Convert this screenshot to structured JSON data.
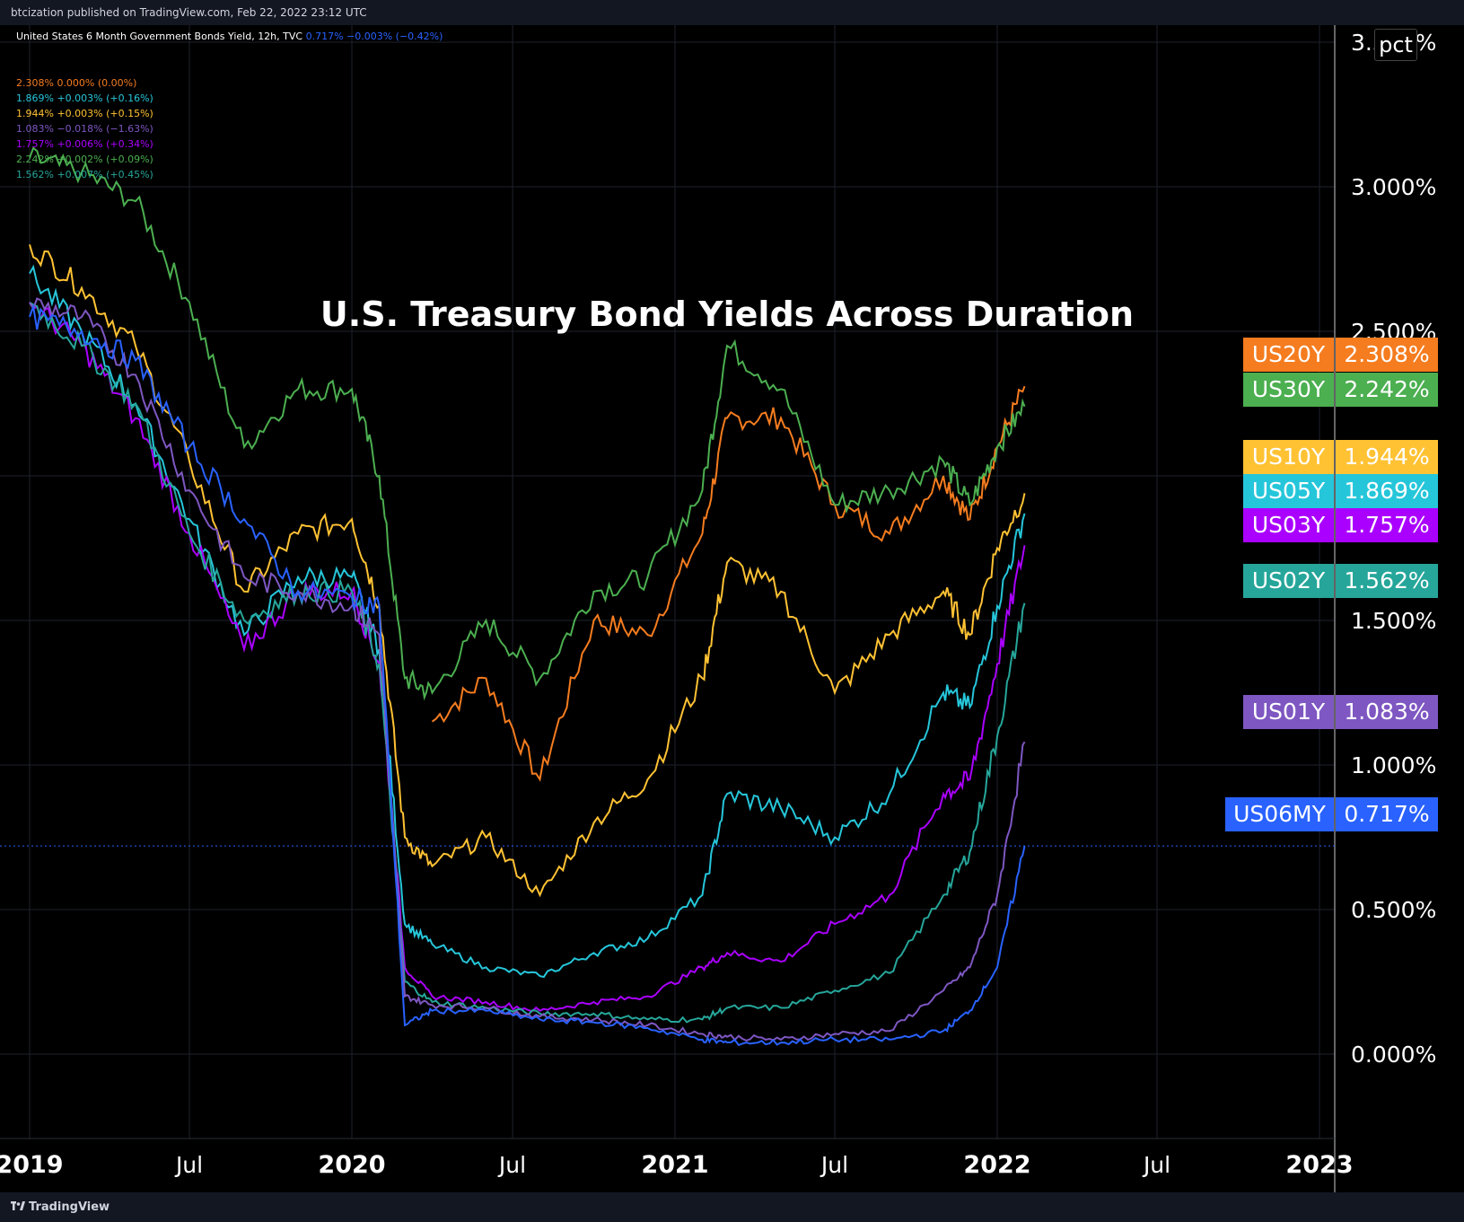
{
  "header": {
    "published": "btcization published on TradingView.com, Feb 22, 2022 23:12 UTC"
  },
  "symbol_line": {
    "name": "United States 6 Month Government Bonds Yield, 12h, TVC",
    "values": "0.717%  −0.003% (−0.42%)"
  },
  "legend": [
    {
      "text": "2.308%  0.000% (0.00%)",
      "color": "#f57c1f"
    },
    {
      "text": "1.869%  +0.003% (+0.16%)",
      "color": "#26c6da"
    },
    {
      "text": "1.944%  +0.003% (+0.15%)",
      "color": "#ffc233"
    },
    {
      "text": "1.083%  −0.018% (−1.63%)",
      "color": "#7e57c2"
    },
    {
      "text": "1.757%  +0.006% (+0.34%)",
      "color": "#aa00ff"
    },
    {
      "text": "2.242%  +0.002% (+0.09%)",
      "color": "#4caf50"
    },
    {
      "text": "1.562%  +0.007% (+0.45%)",
      "color": "#26a69a"
    }
  ],
  "footer": {
    "brand": "TradingView",
    "brand_icon": "tradingview-logo-icon"
  },
  "scale_mode_button": "pct",
  "chart_data": {
    "type": "line",
    "title": "U.S. Treasury Bond Yields Across Duration",
    "xlabel": "",
    "ylabel": "",
    "x_tick_labels": [
      "2019",
      "Jul",
      "2020",
      "Jul",
      "2021",
      "Jul",
      "2022",
      "Jul",
      "2023"
    ],
    "y_tick_labels": [
      "0.000%",
      "0.500%",
      "1.000%",
      "1.500%",
      "2.000%",
      "2.500%",
      "3.000%",
      "3.500%"
    ],
    "ylim": [
      -0.3,
      3.55
    ],
    "xlim": [
      "2019-01-01",
      "2023-01-01"
    ],
    "grid": true,
    "x": [
      "2019-01",
      "2019-03",
      "2019-05",
      "2019-07",
      "2019-09",
      "2019-11",
      "2020-01",
      "2020-02",
      "2020-03",
      "2020-04",
      "2020-06",
      "2020-08",
      "2020-10",
      "2020-12",
      "2021-02",
      "2021-03",
      "2021-05",
      "2021-07",
      "2021-09",
      "2021-11",
      "2021-12",
      "2022-01",
      "2022-02"
    ],
    "series": [
      {
        "name": "US20Y",
        "color": "#f57c1f",
        "label_value": "2.308%",
        "values": [
          null,
          null,
          null,
          null,
          null,
          null,
          null,
          null,
          null,
          1.15,
          1.3,
          0.95,
          1.5,
          1.45,
          1.8,
          2.2,
          2.2,
          1.9,
          1.8,
          2.0,
          1.85,
          2.1,
          2.31
        ]
      },
      {
        "name": "US30Y",
        "color": "#4caf50",
        "label_value": "2.242%",
        "values": [
          3.1,
          3.05,
          2.95,
          2.6,
          2.1,
          2.3,
          2.3,
          2.0,
          1.3,
          1.25,
          1.5,
          1.3,
          1.6,
          1.65,
          1.95,
          2.45,
          2.3,
          1.9,
          1.95,
          2.05,
          1.9,
          2.1,
          2.24
        ]
      },
      {
        "name": "US10Y",
        "color": "#ffc233",
        "label_value": "1.944%",
        "values": [
          2.8,
          2.65,
          2.45,
          2.05,
          1.6,
          1.8,
          1.85,
          1.55,
          0.75,
          0.65,
          0.75,
          0.55,
          0.8,
          0.95,
          1.3,
          1.7,
          1.6,
          1.25,
          1.45,
          1.6,
          1.45,
          1.75,
          1.94
        ]
      },
      {
        "name": "US05Y",
        "color": "#26c6da",
        "label_value": "1.869%",
        "values": [
          2.7,
          2.5,
          2.25,
          1.85,
          1.45,
          1.65,
          1.65,
          1.4,
          0.45,
          0.38,
          0.3,
          0.27,
          0.35,
          0.4,
          0.55,
          0.9,
          0.85,
          0.75,
          0.9,
          1.25,
          1.2,
          1.55,
          1.87
        ]
      },
      {
        "name": "US03Y",
        "color": "#aa00ff",
        "label_value": "1.757%",
        "values": [
          2.6,
          2.45,
          2.2,
          1.8,
          1.4,
          1.6,
          1.6,
          1.35,
          0.3,
          0.2,
          0.18,
          0.15,
          0.18,
          0.2,
          0.3,
          0.35,
          0.32,
          0.45,
          0.55,
          0.9,
          0.95,
          1.35,
          1.76
        ]
      },
      {
        "name": "US02Y",
        "color": "#26a69a",
        "label_value": "1.562%",
        "values": [
          2.6,
          2.45,
          2.25,
          1.8,
          1.5,
          1.6,
          1.6,
          1.35,
          0.25,
          0.18,
          0.16,
          0.14,
          0.14,
          0.12,
          0.12,
          0.16,
          0.16,
          0.22,
          0.28,
          0.55,
          0.7,
          1.1,
          1.56
        ]
      },
      {
        "name": "US01Y",
        "color": "#7e57c2",
        "label_value": "1.083%",
        "values": [
          2.6,
          2.55,
          2.35,
          1.95,
          1.65,
          1.6,
          1.55,
          1.45,
          0.2,
          0.17,
          0.16,
          0.13,
          0.12,
          0.1,
          0.07,
          0.06,
          0.05,
          0.07,
          0.08,
          0.22,
          0.3,
          0.55,
          1.08
        ]
      },
      {
        "name": "US06MY",
        "color": "#2962ff",
        "label_value": "0.717%",
        "values": [
          2.55,
          2.5,
          2.4,
          2.1,
          1.85,
          1.6,
          1.58,
          1.55,
          0.1,
          0.15,
          0.15,
          0.12,
          0.11,
          0.09,
          0.05,
          0.04,
          0.04,
          0.05,
          0.05,
          0.08,
          0.15,
          0.3,
          0.72
        ]
      }
    ]
  }
}
